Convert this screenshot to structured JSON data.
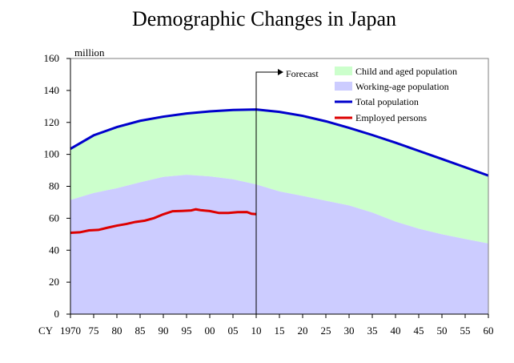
{
  "chart_data": {
    "type": "area",
    "title": "Demographic Changes in Japan",
    "ylabel": "million",
    "xlabel_prefix": "CY",
    "ylim": [
      0,
      160
    ],
    "y_ticks": [
      0,
      20,
      40,
      60,
      80,
      100,
      120,
      140,
      160
    ],
    "xlim": [
      1970,
      2060
    ],
    "x_ticks": [
      {
        "year": 1970,
        "label": "1970"
      },
      {
        "year": 1975,
        "label": "75"
      },
      {
        "year": 1980,
        "label": "80"
      },
      {
        "year": 1985,
        "label": "85"
      },
      {
        "year": 1990,
        "label": "90"
      },
      {
        "year": 1995,
        "label": "95"
      },
      {
        "year": 2000,
        "label": "00"
      },
      {
        "year": 2005,
        "label": "05"
      },
      {
        "year": 2010,
        "label": "10"
      },
      {
        "year": 2015,
        "label": "15"
      },
      {
        "year": 2020,
        "label": "20"
      },
      {
        "year": 2025,
        "label": "25"
      },
      {
        "year": 2030,
        "label": "30"
      },
      {
        "year": 2035,
        "label": "35"
      },
      {
        "year": 2040,
        "label": "40"
      },
      {
        "year": 2045,
        "label": "45"
      },
      {
        "year": 2050,
        "label": "50"
      },
      {
        "year": 2055,
        "label": "55"
      },
      {
        "year": 2060,
        "label": "60"
      }
    ],
    "forecast": {
      "label": "Forecast",
      "start_year": 2010
    },
    "legend_position": "top-right",
    "series": [
      {
        "name": "Child and aged population",
        "kind": "area",
        "color": "#ccffcc",
        "description_note": "difference between total and working-age population"
      },
      {
        "name": "Working-age population",
        "kind": "area",
        "color": "#ccccff",
        "x": [
          1970,
          1975,
          1980,
          1985,
          1990,
          1995,
          2000,
          2005,
          2010,
          2015,
          2020,
          2025,
          2030,
          2035,
          2040,
          2045,
          2050,
          2055,
          2060
        ],
        "values": [
          71.5,
          75.8,
          78.8,
          82.5,
          85.9,
          87.2,
          86.2,
          84.4,
          81.2,
          76.8,
          74.0,
          71.0,
          68.0,
          63.6,
          57.9,
          53.5,
          50.0,
          47.0,
          44.2
        ]
      },
      {
        "name": "Total population",
        "kind": "line",
        "color": "#0000cc",
        "x": [
          1970,
          1975,
          1980,
          1985,
          1990,
          1995,
          2000,
          2005,
          2010,
          2015,
          2020,
          2025,
          2030,
          2035,
          2040,
          2045,
          2050,
          2055,
          2060
        ],
        "values": [
          103.5,
          111.9,
          117.1,
          121.0,
          123.6,
          125.6,
          126.9,
          127.8,
          128.1,
          126.6,
          124.1,
          120.7,
          116.6,
          112.1,
          107.3,
          102.2,
          97.1,
          91.9,
          86.7
        ]
      },
      {
        "name": "Employed persons",
        "kind": "line",
        "color": "#dd0000",
        "x": [
          1970,
          1972,
          1974,
          1976,
          1978,
          1980,
          1982,
          1984,
          1986,
          1988,
          1990,
          1992,
          1994,
          1996,
          1997,
          1998,
          2000,
          2002,
          2004,
          2006,
          2008,
          2009,
          2010
        ],
        "values": [
          50.9,
          51.2,
          52.4,
          52.7,
          54.1,
          55.4,
          56.4,
          57.7,
          58.5,
          60.1,
          62.5,
          64.4,
          64.6,
          64.9,
          65.6,
          65.1,
          64.5,
          63.3,
          63.3,
          63.8,
          63.9,
          62.8,
          62.6
        ]
      }
    ]
  }
}
